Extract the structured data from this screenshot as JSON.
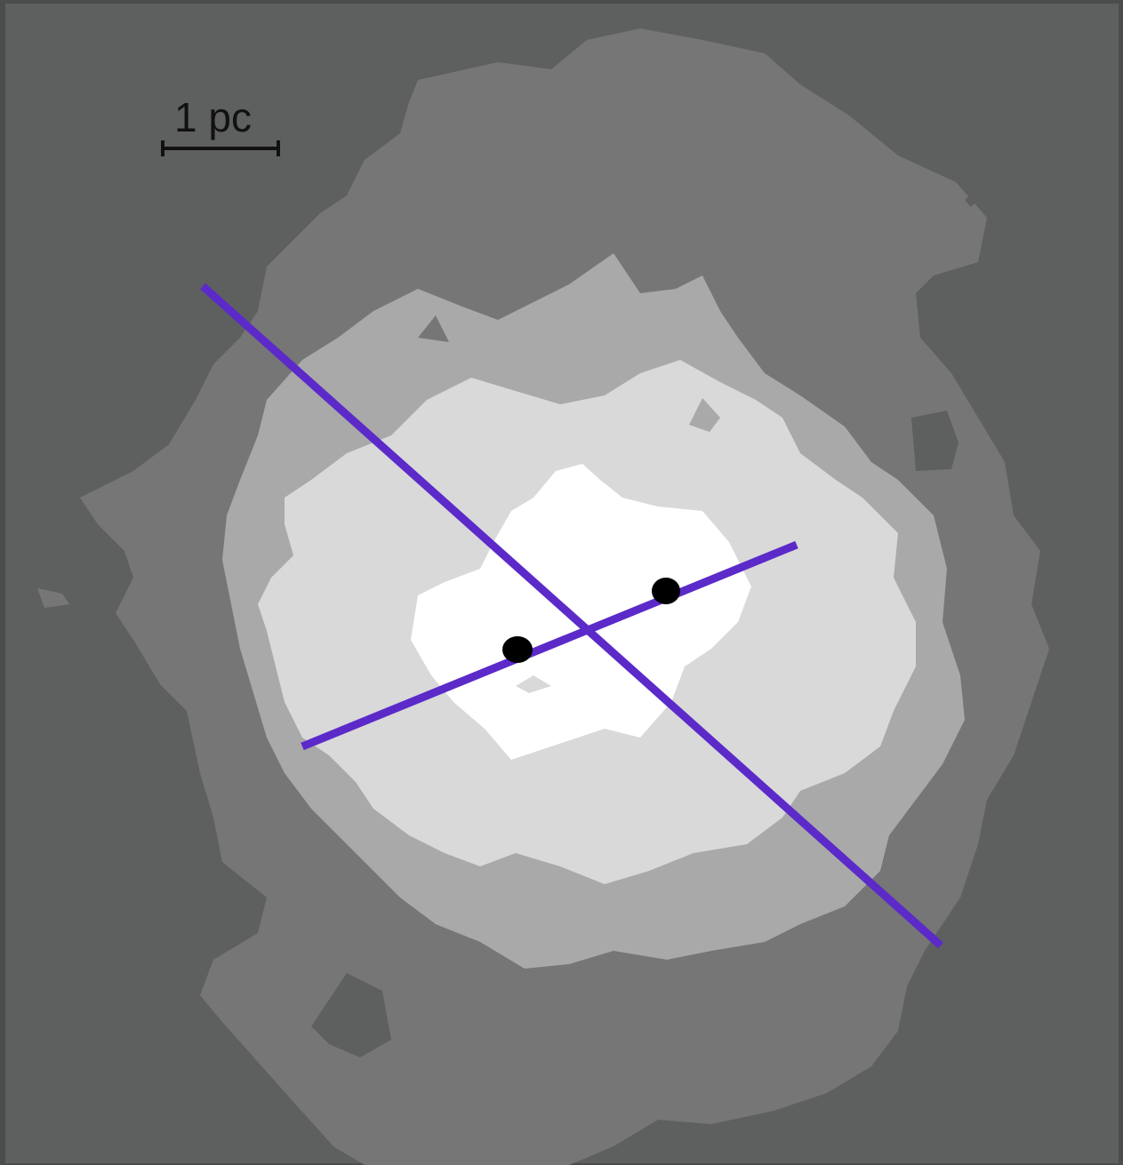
{
  "figure": {
    "scale_bar_label": "1 pc",
    "colors": {
      "frame": "#4a4c4e",
      "level0_background": "#5e605f",
      "level1": "#767676",
      "level2": "#a9a9a9",
      "level3": "#d9d9d9",
      "level4_peak": "#ffffff",
      "axes_lines": "#5b2ac9",
      "sources": "#000000",
      "scale_bar": "#111111"
    },
    "contour_levels": 5,
    "axis_lines": [
      "major-axis",
      "minor-axis"
    ],
    "point_sources": 2
  }
}
